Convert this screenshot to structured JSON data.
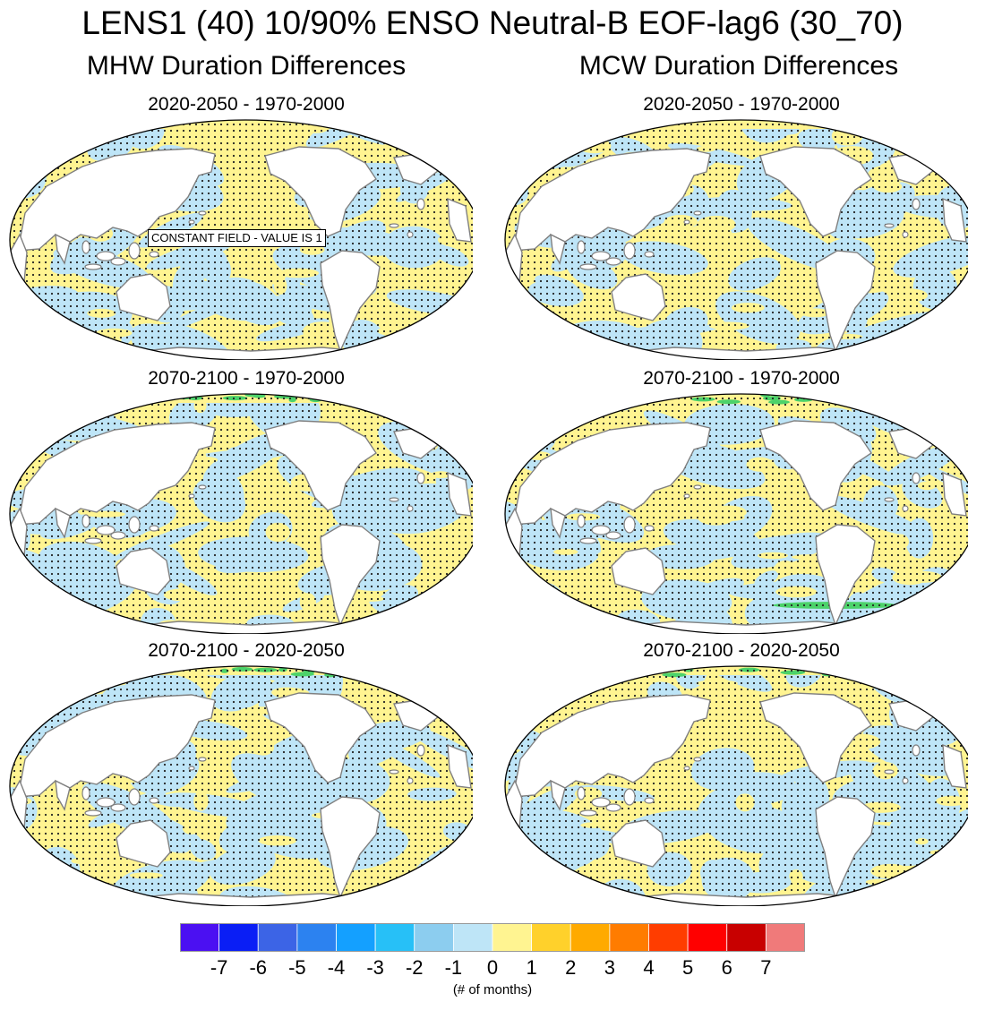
{
  "title": "LENS1 (40) 10/90% ENSO Neutral-B EOF-lag6 (30_70)",
  "columns": [
    {
      "title": "MHW Duration Differences"
    },
    {
      "title": "MCW Duration Differences"
    }
  ],
  "panels": [
    {
      "title": "2020-2050 - 1970-2000",
      "column": 0,
      "row": 0,
      "annotation": "CONSTANT FIELD - VALUE IS 1"
    },
    {
      "title": "2020-2050 - 1970-2000",
      "column": 1,
      "row": 0
    },
    {
      "title": "2070-2100 - 1970-2000",
      "column": 0,
      "row": 1
    },
    {
      "title": "2070-2100 - 1970-2000",
      "column": 1,
      "row": 1
    },
    {
      "title": "2070-2100 - 2020-2050",
      "column": 0,
      "row": 2
    },
    {
      "title": "2070-2100 - 2020-2050",
      "column": 1,
      "row": 2
    }
  ],
  "colorbar": {
    "colors": [
      "#4b10f2",
      "#0a1ef5",
      "#3c64e6",
      "#2c82f0",
      "#14a0ff",
      "#27c0f7",
      "#8ccdef",
      "#bee5f7",
      "#fff491",
      "#ffd12b",
      "#ffaa00",
      "#ff7c00",
      "#ff3d00",
      "#ff0000",
      "#c80000",
      "#f07a7a"
    ],
    "labels": [
      "-7",
      "-6",
      "-5",
      "-4",
      "-3",
      "-2",
      "-1",
      "0",
      "1",
      "2",
      "3",
      "4",
      "5",
      "6",
      "7"
    ],
    "units": "(# of months)"
  },
  "map_colors": {
    "ocean_positive": "#fff491",
    "ocean_negative": "#bee5f7",
    "strong_positive": "#4cd26a",
    "land": "#ffffff",
    "coast": "#808080",
    "stipple": "#222222"
  },
  "legend_note": "stippling dots shown over ocean areas"
}
